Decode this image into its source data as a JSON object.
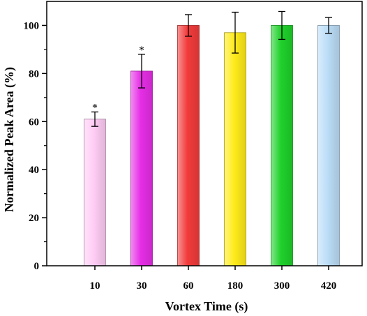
{
  "chart_data": {
    "type": "bar",
    "xlabel": "Vortex Time (s)",
    "ylabel": "Normalized Peak Area (%)",
    "categories": [
      "10",
      "30",
      "60",
      "180",
      "300",
      "420"
    ],
    "values": [
      61,
      81,
      100,
      97,
      100,
      100
    ],
    "errors": [
      3,
      7,
      4.5,
      8.5,
      5.8,
      3.3
    ],
    "significance": [
      "*",
      "*",
      "",
      "",
      "",
      ""
    ],
    "colors": [
      "#FFCCF5",
      "#E62EE6",
      "#F23B3B",
      "#FFEB1A",
      "#1FD12B",
      "#BBDDF7"
    ],
    "ylim": [
      0,
      110
    ],
    "yticks": [
      0,
      20,
      40,
      60,
      80,
      100
    ],
    "grid": false,
    "legend": false
  }
}
